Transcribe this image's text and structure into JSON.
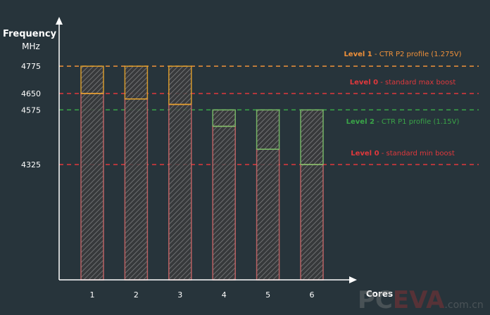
{
  "chart_data": {
    "type": "bar",
    "ylabel": "Frequency",
    "yunit": "MHz",
    "xlabel": "Cores",
    "categories": [
      "1",
      "2",
      "3",
      "4",
      "5",
      "6"
    ],
    "ylim": [
      3800,
      4900
    ],
    "yticks": [
      4775,
      4650,
      4575,
      4325
    ],
    "grid": false,
    "series": [
      {
        "values": [
          4650,
          4625,
          4600,
          4500,
          4395,
          4325
        ],
        "color": "#d36a6a"
      },
      {
        "top": [
          4775,
          4775,
          4775,
          4575,
          4575,
          4575
        ],
        "colors": [
          "#e9a52c",
          "#e9a52c",
          "#e9a52c",
          "#7fc26a",
          "#7fc26a",
          "#7fc26a"
        ]
      }
    ],
    "reference_lines": [
      {
        "value": 4775,
        "color": "#f0913a",
        "label_bold": "Level 1",
        "label": " - CTR P2 profile (1.275V)"
      },
      {
        "value": 4650,
        "color": "#e0383c",
        "label_bold": "Level 0",
        "label": " - standard max boost"
      },
      {
        "value": 4575,
        "color": "#3aa548",
        "label_bold": "Level 2",
        "label": " - CTR P1 profile (1.15V)"
      },
      {
        "value": 4325,
        "color": "#e0383c",
        "label_bold": "Level 0",
        "label": " - standard min boost"
      }
    ]
  },
  "watermark": "PCEVA.com.cn"
}
